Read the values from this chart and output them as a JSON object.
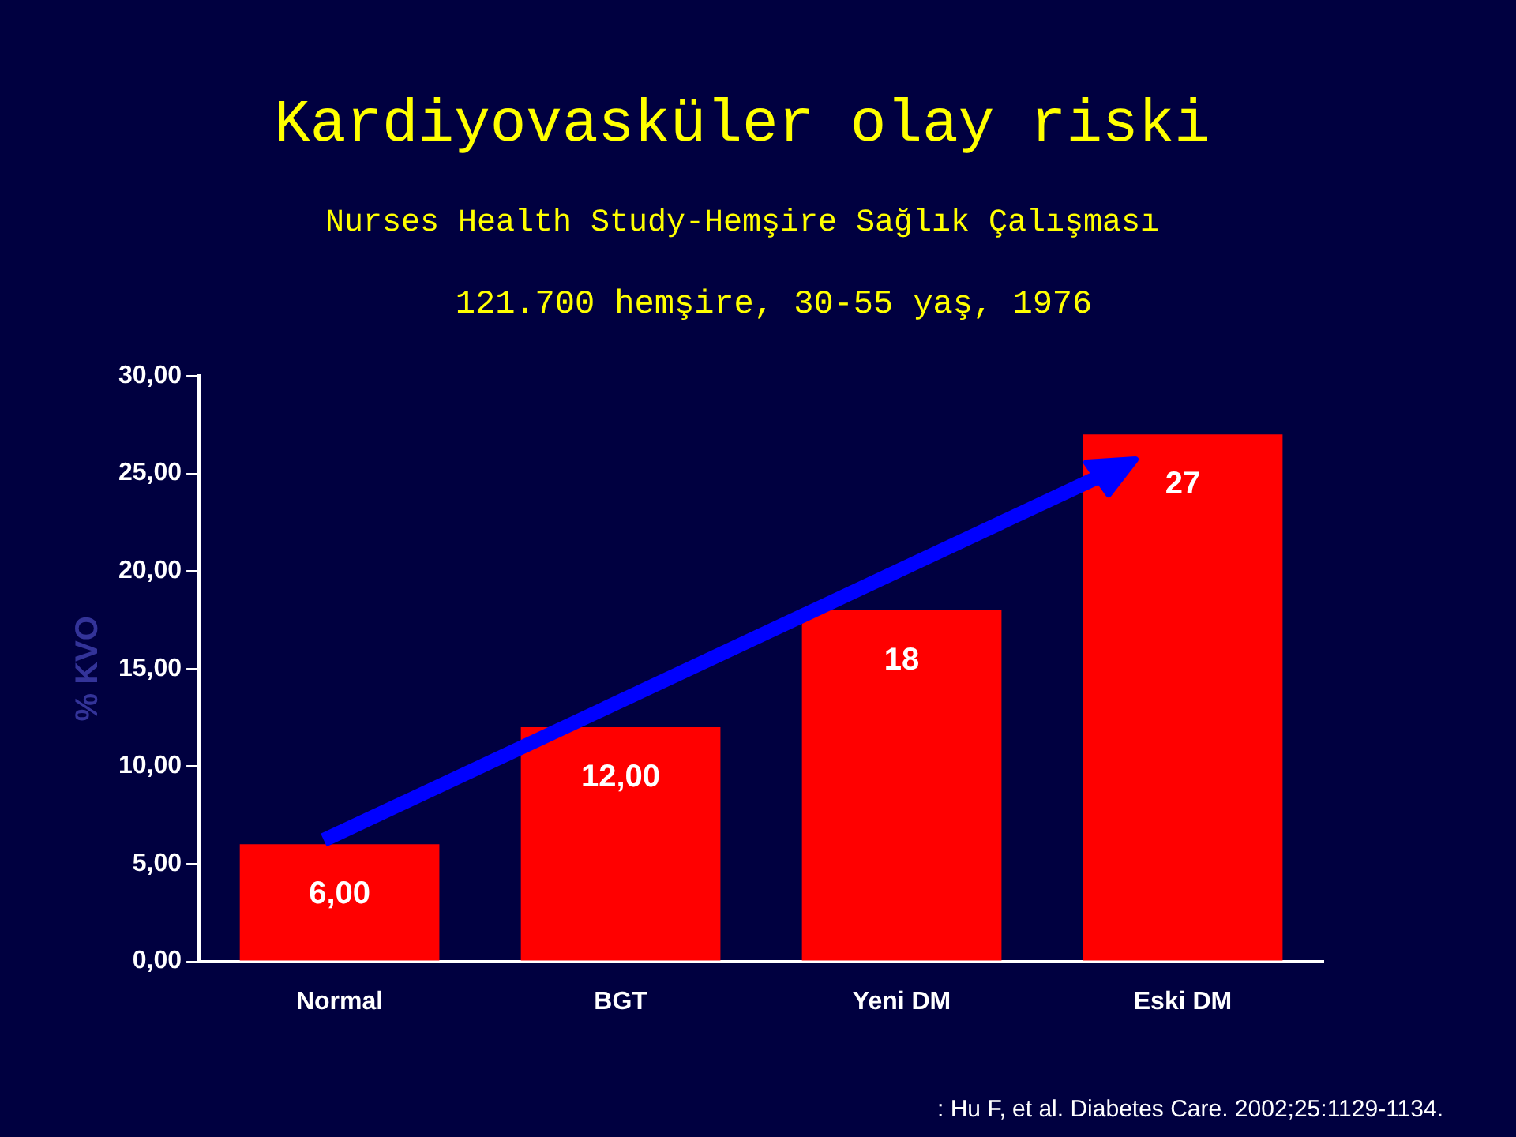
{
  "chart_data": {
    "type": "bar",
    "title": "Kardiyovasküler olay riski",
    "subtitle": "Nurses Health Study-Hemşire Sağlık Çalışması",
    "ylabel": "% KVO",
    "categories": [
      "Normal",
      "BGT",
      "Yeni DM",
      "Eski DM"
    ],
    "values": [
      6,
      12,
      18,
      27
    ],
    "value_labels": [
      "6,00",
      "12,00",
      "18",
      "27"
    ],
    "color": "#ff0000",
    "ylim": [
      0,
      30
    ],
    "yticks": [
      {
        "value": 0,
        "label": "0,00"
      },
      {
        "value": 5,
        "label": "5,00"
      },
      {
        "value": 10,
        "label": "10,00"
      },
      {
        "value": 15,
        "label": "15,00"
      },
      {
        "value": 20,
        "label": "20,00"
      },
      {
        "value": 25,
        "label": "25,00"
      },
      {
        "value": 30,
        "label": "30,00"
      }
    ],
    "grid": false,
    "legend": false,
    "annotations": [
      "121.700 hemşire, 30-55 yaş, 1976",
      ": Hu F, et al. Diabetes Care. 2002;25:1129-1134."
    ]
  }
}
